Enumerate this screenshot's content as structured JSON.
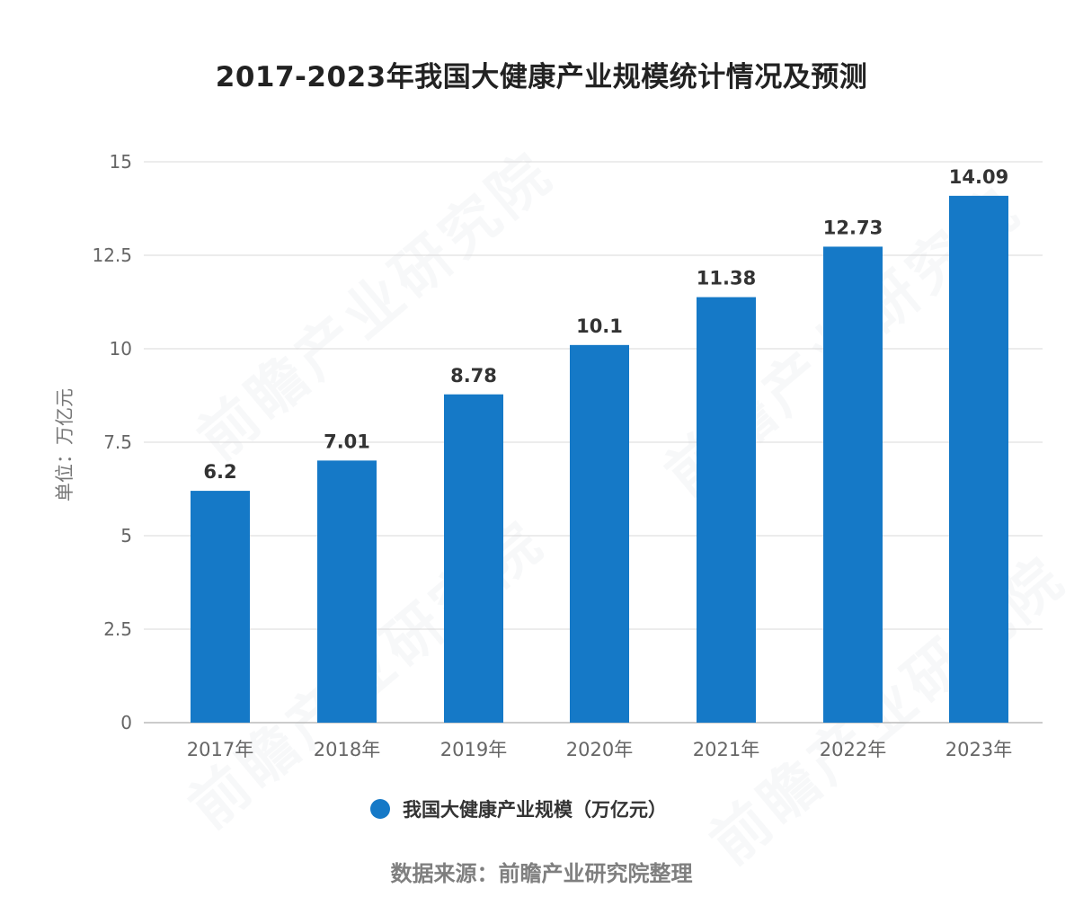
{
  "page": {
    "title": "2017-2023年我国大健康产业规模统计情况及预测",
    "source_note": "数据来源：前瞻产业研究院整理",
    "watermark": "前瞻产业研究院"
  },
  "colors": {
    "bar": "#1579c7",
    "grid": "#d9d9d9",
    "axis_text": "#666666",
    "label_text": "#333333"
  },
  "chart_data": {
    "type": "bar",
    "title": "2017-2023年我国大健康产业规模统计情况及预测",
    "ylabel": "单位：万亿元",
    "xlabel": "",
    "categories": [
      "2017年",
      "2018年",
      "2019年",
      "2020年",
      "2021年",
      "2022年",
      "2023年"
    ],
    "series": [
      {
        "name": "我国大健康产业规模（万亿元）",
        "values": [
          6.2,
          7.01,
          8.78,
          10.1,
          11.38,
          12.73,
          14.09
        ]
      }
    ],
    "data_labels": [
      "6.2",
      "7.01",
      "8.78",
      "10.1",
      "11.38",
      "12.73",
      "14.09"
    ],
    "ylim": [
      0,
      15
    ],
    "yticks": [
      0,
      2.5,
      5,
      7.5,
      10,
      12.5,
      15
    ],
    "ytick_labels": [
      "0",
      "2.5",
      "5",
      "7.5",
      "10",
      "12.5",
      "15"
    ],
    "grid": true,
    "legend_position": "bottom"
  }
}
